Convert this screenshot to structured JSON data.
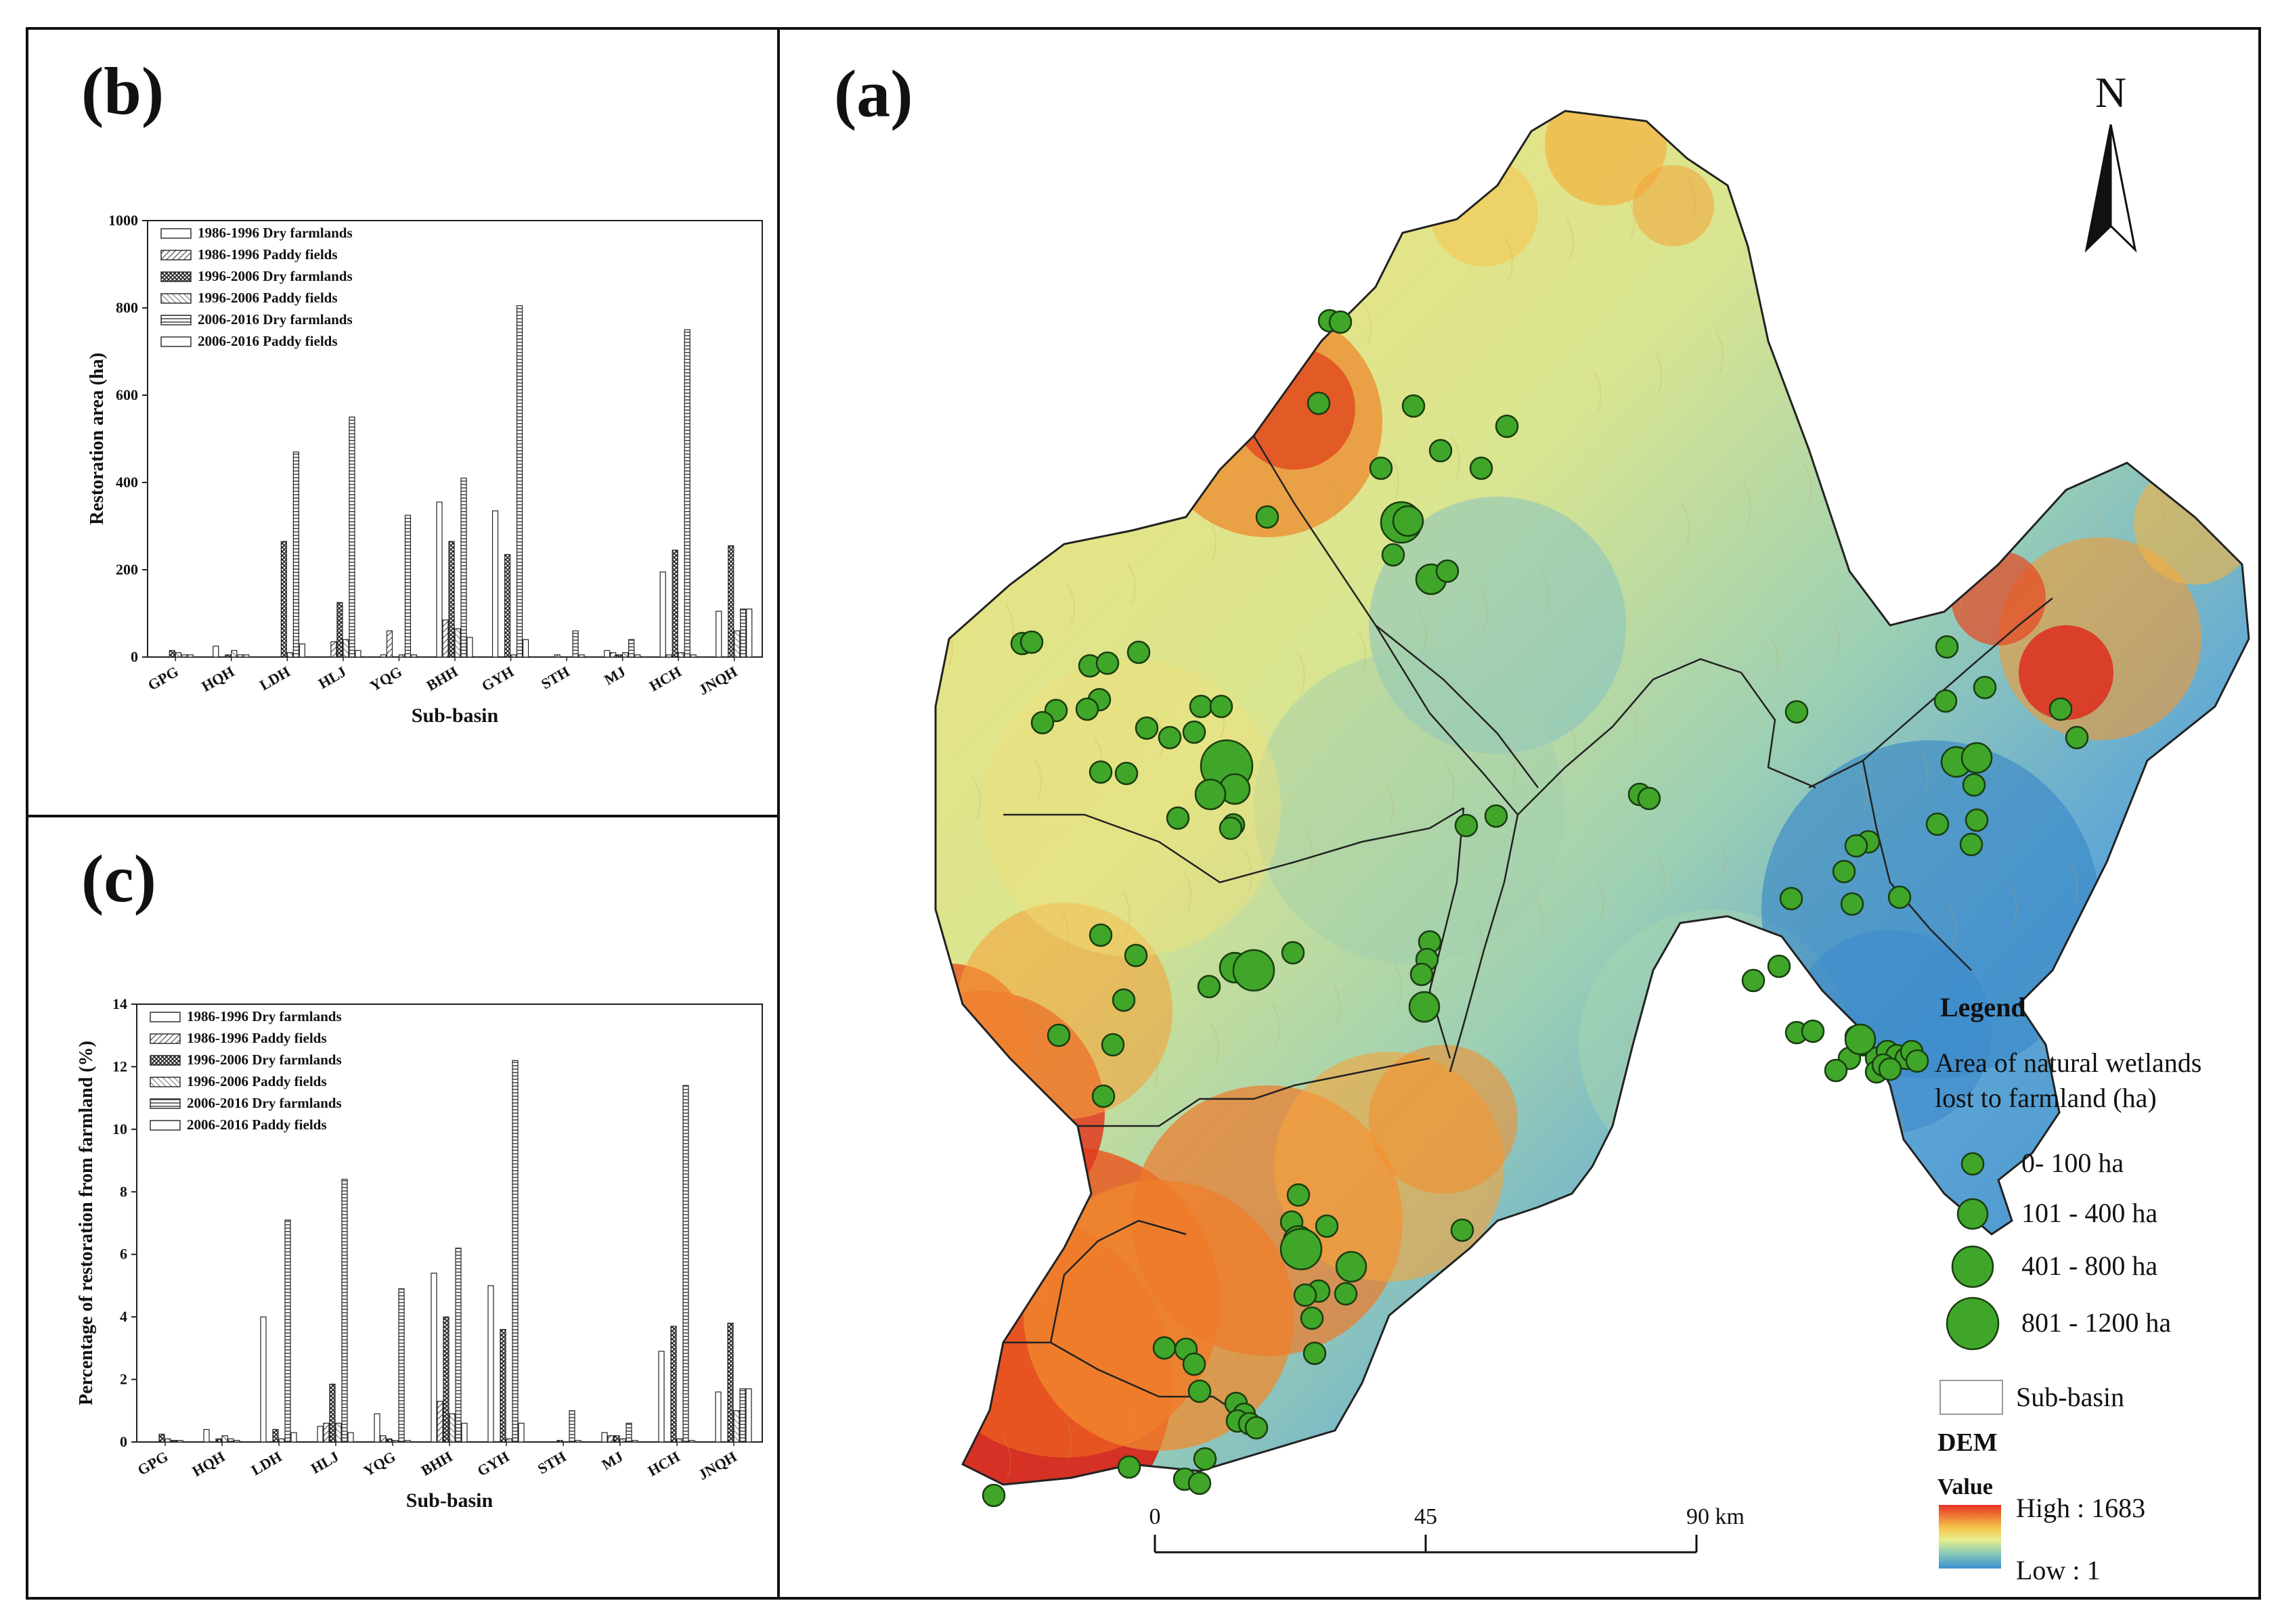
{
  "panel_b": {
    "label": "(b)",
    "chart_data": {
      "type": "bar",
      "ylabel": "Restoration area (ha)",
      "xlabel": "Sub-basin",
      "ylim": [
        0,
        1000
      ],
      "yticks": [
        "0",
        "200",
        "400",
        "600",
        "800",
        "1000"
      ],
      "categories": [
        "GPG",
        "HQH",
        "LDH",
        "HLJ",
        "YQG",
        "BHH",
        "GYH",
        "STH",
        "MJ",
        "HCH",
        "JNQH"
      ],
      "series": [
        {
          "name": "1986-1996 Dry farmlands",
          "values": [
            0,
            25,
            0,
            0,
            5,
            355,
            335,
            0,
            15,
            195,
            105
          ]
        },
        {
          "name": "1986-1996 Paddy fields",
          "values": [
            0,
            0,
            0,
            35,
            60,
            85,
            0,
            5,
            10,
            5,
            0
          ]
        },
        {
          "name": "1996-2006 Dry farmlands",
          "values": [
            15,
            5,
            265,
            125,
            0,
            265,
            235,
            0,
            5,
            245,
            255
          ]
        },
        {
          "name": "1996-2006 Paddy fields",
          "values": [
            10,
            15,
            10,
            40,
            5,
            65,
            5,
            0,
            10,
            10,
            60
          ]
        },
        {
          "name": "2006-2016 Dry farmlands",
          "values": [
            5,
            5,
            470,
            550,
            325,
            410,
            805,
            60,
            40,
            750,
            110
          ]
        },
        {
          "name": "2006-2016 Paddy fields",
          "values": [
            5,
            5,
            30,
            15,
            5,
            45,
            40,
            5,
            5,
            5,
            110
          ]
        }
      ]
    }
  },
  "panel_c": {
    "label": "(c)",
    "chart_data": {
      "type": "bar",
      "ylabel": "Percentage of restoration from farmland (%)",
      "xlabel": "Sub-basin",
      "ylim": [
        0,
        14
      ],
      "yticks": [
        "0",
        "2",
        "4",
        "6",
        "8",
        "10",
        "12",
        "14"
      ],
      "categories": [
        "GPG",
        "HQH",
        "LDH",
        "HLJ",
        "YQG",
        "BHH",
        "GYH",
        "STH",
        "MJ",
        "HCH",
        "JNQH"
      ],
      "series": [
        {
          "name": "1986-1996 Dry farmlands",
          "values": [
            0,
            0.4,
            4.0,
            0.5,
            0.9,
            5.4,
            5.0,
            0,
            0.3,
            2.9,
            1.6
          ]
        },
        {
          "name": "1986-1996 Paddy fields",
          "values": [
            0,
            0,
            0,
            0.6,
            0.2,
            1.3,
            0,
            0,
            0.2,
            0,
            0
          ]
        },
        {
          "name": "1996-2006 Dry farmlands",
          "values": [
            0.25,
            0.1,
            0.4,
            1.85,
            0.1,
            4.0,
            3.6,
            0.05,
            0.2,
            3.7,
            3.8
          ]
        },
        {
          "name": "1996-2006 Paddy fields",
          "values": [
            0.1,
            0.2,
            0.1,
            0.6,
            0.05,
            0.9,
            0.1,
            0,
            0.1,
            0.1,
            1.0
          ]
        },
        {
          "name": "2006-2016 Dry farmlands",
          "values": [
            0.05,
            0.1,
            7.1,
            8.4,
            4.9,
            6.2,
            12.2,
            1.0,
            0.6,
            11.4,
            1.7
          ]
        },
        {
          "name": "2006-2016 Paddy fields",
          "values": [
            0.05,
            0.05,
            0.3,
            0.3,
            0.05,
            0.6,
            0.6,
            0.05,
            0.05,
            0.05,
            1.7
          ]
        }
      ]
    }
  },
  "map": {
    "label": "(a)",
    "north": "N",
    "legend": {
      "title": "Legend",
      "subtitle_line1": "Area of natural wetlands",
      "subtitle_line2": "lost to farmland (ha)",
      "classes": [
        "0- 100 ha",
        "101 - 400 ha",
        "401 - 800 ha",
        "801 - 1200 ha"
      ],
      "subbasin": "Sub-basin",
      "dem_title": "DEM",
      "value_title": "Value",
      "high": "High : 1683",
      "low": "Low : 1"
    },
    "scale": {
      "ticks": [
        "0",
        "45",
        "90 km"
      ]
    }
  }
}
